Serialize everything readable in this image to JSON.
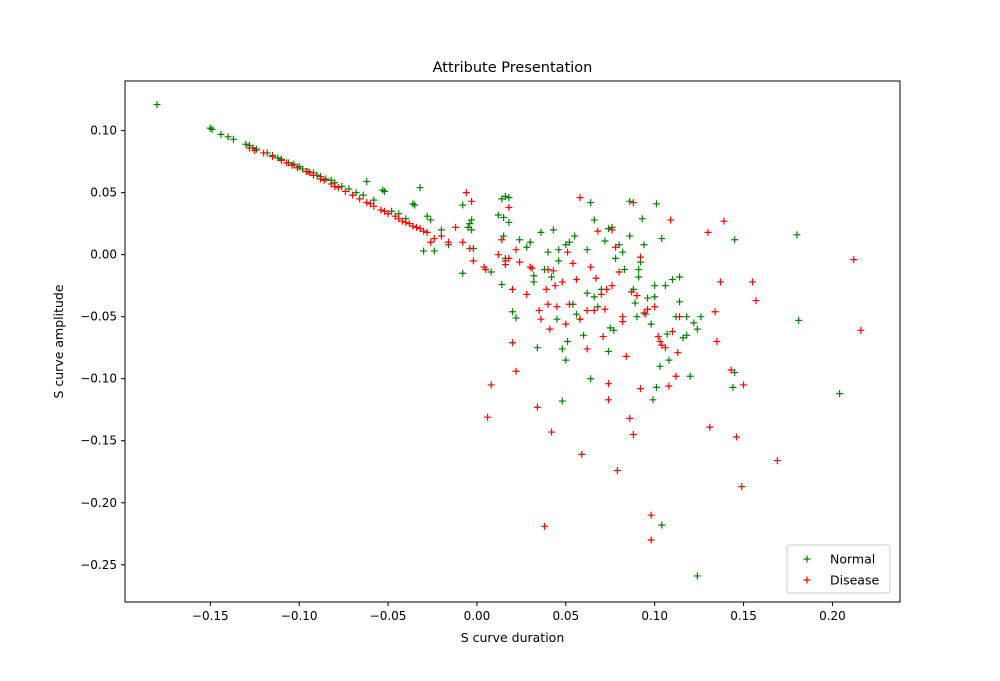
{
  "chart_data": {
    "type": "scatter",
    "title": "Attribute Presentation",
    "xlabel": "S curve duration",
    "ylabel": "S curve amplitude",
    "xlim": [
      -0.198,
      0.238
    ],
    "ylim": [
      -0.28,
      0.14
    ],
    "xticks": [
      -0.15,
      -0.1,
      -0.05,
      0.0,
      0.05,
      0.1,
      0.15,
      0.2
    ],
    "xtick_labels": [
      "−0.15",
      "−0.10",
      "−0.05",
      "0.00",
      "0.05",
      "0.10",
      "0.15",
      "0.20"
    ],
    "yticks": [
      -0.25,
      -0.2,
      -0.15,
      -0.1,
      -0.05,
      0.0,
      0.05,
      0.1
    ],
    "ytick_labels": [
      "−0.25",
      "−0.20",
      "−0.15",
      "−0.10",
      "−0.05",
      "0.00",
      "0.05",
      "0.10"
    ],
    "grid": false,
    "marker": "+",
    "legend_position": "bottom-right",
    "series": [
      {
        "name": "Normal",
        "color": "#008000",
        "points": [
          [
            -0.18,
            0.121
          ],
          [
            -0.15,
            0.102
          ],
          [
            -0.149,
            0.101
          ],
          [
            -0.144,
            0.097
          ],
          [
            -0.14,
            0.095
          ],
          [
            -0.137,
            0.093
          ],
          [
            -0.13,
            0.089
          ],
          [
            -0.128,
            0.088
          ],
          [
            -0.126,
            0.086
          ],
          [
            -0.124,
            0.085
          ],
          [
            -0.118,
            0.082
          ],
          [
            -0.115,
            0.08
          ],
          [
            -0.112,
            0.078
          ],
          [
            -0.11,
            0.077
          ],
          [
            -0.106,
            0.074
          ],
          [
            -0.103,
            0.073
          ],
          [
            -0.1,
            0.071
          ],
          [
            -0.098,
            0.069
          ],
          [
            -0.095,
            0.067
          ],
          [
            -0.092,
            0.066
          ],
          [
            -0.09,
            0.064
          ],
          [
            -0.088,
            0.063
          ],
          [
            -0.085,
            0.061
          ],
          [
            -0.082,
            0.06
          ],
          [
            -0.08,
            0.058
          ],
          [
            -0.076,
            0.055
          ],
          [
            -0.072,
            0.053
          ],
          [
            -0.068,
            0.05
          ],
          [
            -0.064,
            0.048
          ],
          [
            -0.062,
            0.059
          ],
          [
            -0.058,
            0.044
          ],
          [
            -0.053,
            0.052
          ],
          [
            -0.052,
            0.051
          ],
          [
            -0.048,
            0.035
          ],
          [
            -0.044,
            0.033
          ],
          [
            -0.04,
            0.029
          ],
          [
            -0.036,
            0.041
          ],
          [
            -0.035,
            0.04
          ],
          [
            -0.032,
            0.054
          ],
          [
            -0.03,
            0.003
          ],
          [
            -0.028,
            0.031
          ],
          [
            -0.026,
            0.028
          ],
          [
            -0.024,
            0.003
          ],
          [
            -0.02,
            0.02
          ],
          [
            -0.016,
            0.008
          ],
          [
            -0.008,
            0.04
          ],
          [
            -0.008,
            -0.015
          ],
          [
            -0.005,
            0.022
          ],
          [
            -0.004,
            0.025
          ],
          [
            -0.003,
            0.028
          ],
          [
            -0.003,
            0.02
          ],
          [
            -0.002,
            0.005
          ],
          [
            0.008,
            -0.014
          ],
          [
            0.012,
            0.032
          ],
          [
            0.014,
            -0.024
          ],
          [
            0.014,
            0.045
          ],
          [
            0.015,
            0.03
          ],
          [
            0.015,
            0.015
          ],
          [
            0.016,
            -0.003
          ],
          [
            0.016,
            0.047
          ],
          [
            0.018,
            0.026
          ],
          [
            0.018,
            0.046
          ],
          [
            0.02,
            -0.046
          ],
          [
            0.022,
            -0.051
          ],
          [
            0.024,
            0.012
          ],
          [
            0.028,
            0.006
          ],
          [
            0.03,
            0.01
          ],
          [
            0.032,
            -0.017
          ],
          [
            0.032,
            -0.022
          ],
          [
            0.034,
            -0.075
          ],
          [
            0.036,
            0.018
          ],
          [
            0.038,
            -0.012
          ],
          [
            0.04,
            0.002
          ],
          [
            0.042,
            -0.018
          ],
          [
            0.043,
            0.02
          ],
          [
            0.045,
            -0.052
          ],
          [
            0.046,
            -0.005
          ],
          [
            0.046,
            0.004
          ],
          [
            0.048,
            -0.076
          ],
          [
            0.048,
            -0.118
          ],
          [
            0.05,
            0.008
          ],
          [
            0.05,
            -0.085
          ],
          [
            0.051,
            -0.07
          ],
          [
            0.052,
            0.01
          ],
          [
            0.054,
            -0.04
          ],
          [
            0.055,
            0.015
          ],
          [
            0.056,
            -0.048
          ],
          [
            0.058,
            -0.052
          ],
          [
            0.06,
            -0.065
          ],
          [
            0.062,
            -0.031
          ],
          [
            0.062,
            0.004
          ],
          [
            0.064,
            -0.1
          ],
          [
            0.064,
            0.042
          ],
          [
            0.066,
            0.028
          ],
          [
            0.066,
            -0.034
          ],
          [
            0.068,
            -0.042
          ],
          [
            0.07,
            -0.028
          ],
          [
            0.072,
            0.011
          ],
          [
            0.074,
            0.021
          ],
          [
            0.074,
            -0.078
          ],
          [
            0.075,
            -0.059
          ],
          [
            0.076,
            0.022
          ],
          [
            0.077,
            -0.061
          ],
          [
            0.078,
            -0.003
          ],
          [
            0.08,
            0.008
          ],
          [
            0.082,
            0.002
          ],
          [
            0.083,
            -0.012
          ],
          [
            0.086,
            0.043
          ],
          [
            0.086,
            0.015
          ],
          [
            0.088,
            -0.028
          ],
          [
            0.089,
            -0.039
          ],
          [
            0.09,
            -0.05
          ],
          [
            0.091,
            -0.018
          ],
          [
            0.091,
            -0.012
          ],
          [
            0.092,
            -0.006
          ],
          [
            0.093,
            0.029
          ],
          [
            0.094,
            0.008
          ],
          [
            0.095,
            -0.048
          ],
          [
            0.096,
            -0.035
          ],
          [
            0.098,
            -0.056
          ],
          [
            0.099,
            -0.117
          ],
          [
            0.1,
            -0.025
          ],
          [
            0.1,
            -0.034
          ],
          [
            0.101,
            0.041
          ],
          [
            0.101,
            -0.107
          ],
          [
            0.103,
            -0.09
          ],
          [
            0.104,
            0.013
          ],
          [
            0.104,
            -0.218
          ],
          [
            0.106,
            -0.025
          ],
          [
            0.107,
            -0.064
          ],
          [
            0.108,
            -0.085
          ],
          [
            0.11,
            -0.02
          ],
          [
            0.112,
            -0.05
          ],
          [
            0.114,
            -0.018
          ],
          [
            0.114,
            -0.038
          ],
          [
            0.116,
            -0.067
          ],
          [
            0.118,
            -0.065
          ],
          [
            0.118,
            -0.05
          ],
          [
            0.12,
            -0.098
          ],
          [
            0.122,
            -0.055
          ],
          [
            0.124,
            -0.06
          ],
          [
            0.124,
            -0.259
          ],
          [
            0.126,
            -0.05
          ],
          [
            0.144,
            -0.107
          ],
          [
            0.145,
            -0.095
          ],
          [
            0.145,
            0.012
          ],
          [
            0.18,
            0.016
          ],
          [
            0.181,
            -0.053
          ],
          [
            0.204,
            -0.112
          ]
        ]
      },
      {
        "name": "Disease",
        "color": "#ff0000",
        "points": [
          [
            -0.128,
            0.086
          ],
          [
            -0.125,
            0.084
          ],
          [
            -0.12,
            0.082
          ],
          [
            -0.115,
            0.079
          ],
          [
            -0.11,
            0.076
          ],
          [
            -0.107,
            0.074
          ],
          [
            -0.104,
            0.072
          ],
          [
            -0.101,
            0.07
          ],
          [
            -0.096,
            0.067
          ],
          [
            -0.094,
            0.066
          ],
          [
            -0.092,
            0.064
          ],
          [
            -0.088,
            0.061
          ],
          [
            -0.086,
            0.06
          ],
          [
            -0.082,
            0.057
          ],
          [
            -0.08,
            0.055
          ],
          [
            -0.078,
            0.054
          ],
          [
            -0.074,
            0.051
          ],
          [
            -0.07,
            0.048
          ],
          [
            -0.066,
            0.045
          ],
          [
            -0.062,
            0.042
          ],
          [
            -0.06,
            0.041
          ],
          [
            -0.058,
            0.039
          ],
          [
            -0.054,
            0.036
          ],
          [
            -0.052,
            0.035
          ],
          [
            -0.05,
            0.033
          ],
          [
            -0.046,
            0.031
          ],
          [
            -0.044,
            0.029
          ],
          [
            -0.042,
            0.027
          ],
          [
            -0.04,
            0.026
          ],
          [
            -0.038,
            0.025
          ],
          [
            -0.036,
            0.023
          ],
          [
            -0.034,
            0.022
          ],
          [
            -0.032,
            0.021
          ],
          [
            -0.03,
            0.019
          ],
          [
            -0.028,
            0.018
          ],
          [
            -0.026,
            0.01
          ],
          [
            -0.024,
            0.013
          ],
          [
            -0.02,
            0.015
          ],
          [
            -0.016,
            0.01
          ],
          [
            -0.012,
            0.022
          ],
          [
            -0.008,
            0.01
          ],
          [
            -0.006,
            0.05
          ],
          [
            -0.004,
            0.005
          ],
          [
            -0.003,
            0.043
          ],
          [
            -0.002,
            -0.005
          ],
          [
            0.004,
            -0.01
          ],
          [
            0.005,
            -0.012
          ],
          [
            0.006,
            -0.131
          ],
          [
            0.008,
            -0.105
          ],
          [
            0.012,
            0.0
          ],
          [
            0.014,
            0.012
          ],
          [
            0.016,
            -0.008
          ],
          [
            0.016,
            -0.005
          ],
          [
            0.018,
            -0.003
          ],
          [
            0.018,
            0.038
          ],
          [
            0.02,
            -0.071
          ],
          [
            0.02,
            -0.028
          ],
          [
            0.022,
            -0.094
          ],
          [
            0.022,
            0.004
          ],
          [
            0.024,
            -0.006
          ],
          [
            0.028,
            -0.032
          ],
          [
            0.03,
            -0.01
          ],
          [
            0.031,
            -0.011
          ],
          [
            0.034,
            -0.123
          ],
          [
            0.035,
            -0.045
          ],
          [
            0.036,
            -0.052
          ],
          [
            0.038,
            -0.219
          ],
          [
            0.039,
            -0.028
          ],
          [
            0.04,
            -0.012
          ],
          [
            0.04,
            -0.04
          ],
          [
            0.041,
            -0.06
          ],
          [
            0.042,
            -0.143
          ],
          [
            0.043,
            -0.013
          ],
          [
            0.044,
            -0.025
          ],
          [
            0.045,
            -0.042
          ],
          [
            0.048,
            -0.022
          ],
          [
            0.05,
            -0.056
          ],
          [
            0.051,
            0.002
          ],
          [
            0.052,
            -0.04
          ],
          [
            0.054,
            -0.007
          ],
          [
            0.056,
            -0.02
          ],
          [
            0.058,
            -0.052
          ],
          [
            0.058,
            0.046
          ],
          [
            0.059,
            -0.161
          ],
          [
            0.062,
            -0.045
          ],
          [
            0.062,
            -0.076
          ],
          [
            0.064,
            -0.01
          ],
          [
            0.066,
            -0.045
          ],
          [
            0.067,
            -0.019
          ],
          [
            0.068,
            0.019
          ],
          [
            0.07,
            -0.032
          ],
          [
            0.071,
            -0.066
          ],
          [
            0.072,
            -0.044
          ],
          [
            0.073,
            -0.028
          ],
          [
            0.074,
            -0.104
          ],
          [
            0.074,
            -0.117
          ],
          [
            0.076,
            -0.025
          ],
          [
            0.076,
            0.02
          ],
          [
            0.078,
            0.006
          ],
          [
            0.079,
            -0.174
          ],
          [
            0.08,
            -0.014
          ],
          [
            0.082,
            -0.05
          ],
          [
            0.082,
            -0.054
          ],
          [
            0.084,
            -0.082
          ],
          [
            0.086,
            -0.132
          ],
          [
            0.087,
            -0.03
          ],
          [
            0.088,
            -0.145
          ],
          [
            0.088,
            0.042
          ],
          [
            0.09,
            -0.033
          ],
          [
            0.092,
            -0.002
          ],
          [
            0.092,
            -0.108
          ],
          [
            0.094,
            -0.047
          ],
          [
            0.096,
            -0.044
          ],
          [
            0.098,
            -0.21
          ],
          [
            0.098,
            -0.23
          ],
          [
            0.1,
            -0.042
          ],
          [
            0.102,
            -0.066
          ],
          [
            0.103,
            -0.07
          ],
          [
            0.104,
            -0.073
          ],
          [
            0.106,
            -0.075
          ],
          [
            0.108,
            -0.106
          ],
          [
            0.109,
            0.028
          ],
          [
            0.11,
            -0.062
          ],
          [
            0.112,
            -0.098
          ],
          [
            0.113,
            -0.079
          ],
          [
            0.114,
            -0.05
          ],
          [
            0.13,
            0.018
          ],
          [
            0.131,
            -0.139
          ],
          [
            0.134,
            -0.046
          ],
          [
            0.135,
            -0.07
          ],
          [
            0.137,
            -0.022
          ],
          [
            0.139,
            0.027
          ],
          [
            0.143,
            -0.093
          ],
          [
            0.146,
            -0.147
          ],
          [
            0.149,
            -0.187
          ],
          [
            0.15,
            -0.105
          ],
          [
            0.155,
            -0.022
          ],
          [
            0.157,
            -0.037
          ],
          [
            0.169,
            -0.166
          ],
          [
            0.212,
            -0.004
          ],
          [
            0.216,
            -0.061
          ]
        ]
      }
    ]
  }
}
